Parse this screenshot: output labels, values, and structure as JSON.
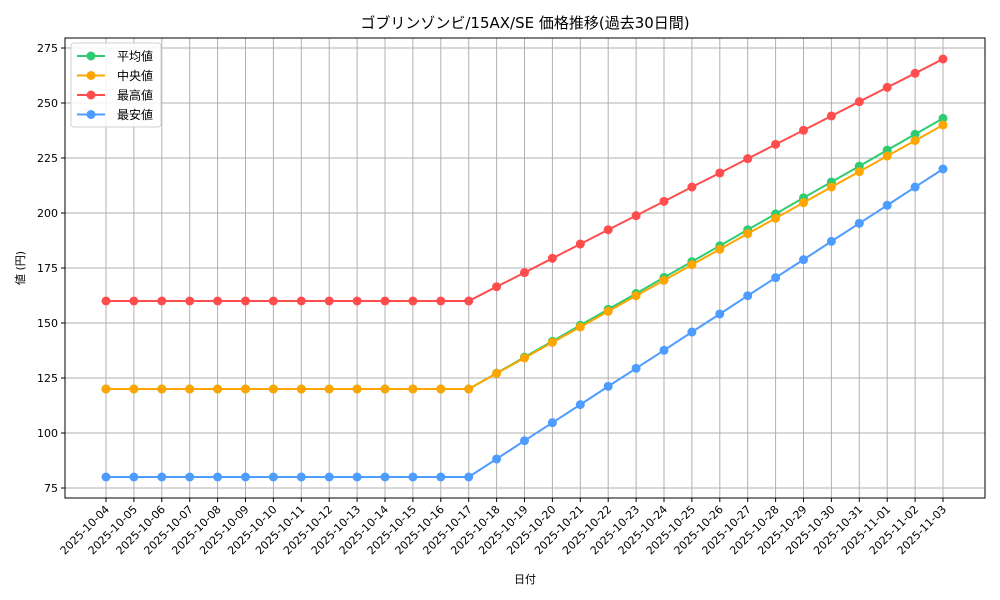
{
  "chart_data": {
    "type": "line",
    "title": "ゴブリンゾンビ/15AX/SE 価格推移(過去30日間)",
    "xlabel": "日付",
    "ylabel": "値 (円)",
    "ylim": [
      72,
      279
    ],
    "yticks": [
      75,
      100,
      125,
      150,
      175,
      200,
      225,
      250,
      275
    ],
    "grid": true,
    "legend_position": "upper left",
    "x": [
      "2025-10-04",
      "2025-10-05",
      "2025-10-06",
      "2025-10-07",
      "2025-10-08",
      "2025-10-09",
      "2025-10-10",
      "2025-10-11",
      "2025-10-12",
      "2025-10-13",
      "2025-10-14",
      "2025-10-15",
      "2025-10-16",
      "2025-10-17",
      "2025-10-18",
      "2025-10-19",
      "2025-10-20",
      "2025-10-21",
      "2025-10-22",
      "2025-10-23",
      "2025-10-24",
      "2025-10-25",
      "2025-10-26",
      "2025-10-27",
      "2025-10-28",
      "2025-10-29",
      "2025-10-30",
      "2025-10-31",
      "2025-11-01",
      "2025-11-02",
      "2025-11-03"
    ],
    "series": [
      {
        "name": "平均値",
        "color": "#2ecc71",
        "values": [
          120,
          120,
          120,
          120,
          120,
          120,
          120,
          120,
          120,
          120,
          120,
          120,
          120,
          120,
          127.2,
          134.5,
          141.7,
          149,
          156.2,
          163.4,
          170.7,
          177.9,
          185.1,
          192.4,
          199.6,
          206.9,
          214.1,
          221.3,
          228.6,
          235.8,
          243
        ]
      },
      {
        "name": "中央値",
        "color": "#ffa500",
        "values": [
          120,
          120,
          120,
          120,
          120,
          120,
          120,
          120,
          120,
          120,
          120,
          120,
          120,
          120,
          127.1,
          134.1,
          141.2,
          148.2,
          155.3,
          162.4,
          169.4,
          176.5,
          183.5,
          190.6,
          197.6,
          204.7,
          211.8,
          218.8,
          225.9,
          232.9,
          240
        ]
      },
      {
        "name": "最高値",
        "color": "#ff4d4d",
        "values": [
          160,
          160,
          160,
          160,
          160,
          160,
          160,
          160,
          160,
          160,
          160,
          160,
          160,
          160,
          166.5,
          172.9,
          179.4,
          185.9,
          192.4,
          198.8,
          205.3,
          211.8,
          218.2,
          224.7,
          231.2,
          237.6,
          244.1,
          250.6,
          257.1,
          263.5,
          270
        ]
      },
      {
        "name": "最安値",
        "color": "#4d9cff",
        "values": [
          80,
          80,
          80,
          80,
          80,
          80,
          80,
          80,
          80,
          80,
          80,
          80,
          80,
          80,
          88.2,
          96.5,
          104.7,
          112.9,
          121.2,
          129.4,
          137.6,
          145.9,
          154.1,
          162.4,
          170.6,
          178.8,
          187.1,
          195.3,
          203.5,
          211.8,
          220
        ]
      }
    ]
  }
}
